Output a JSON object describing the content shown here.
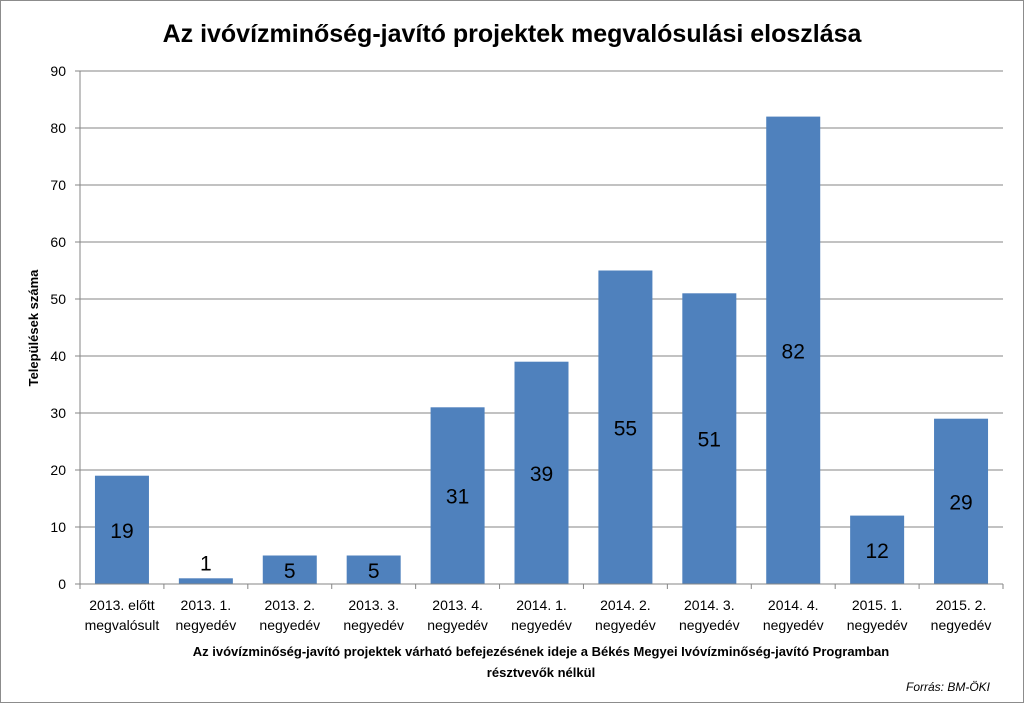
{
  "chart_data": {
    "type": "bar",
    "title": "Az ivóvízminőség-javító projektek megvalósulási eloszlása",
    "ylabel": "Települések száma",
    "xlabel_lines": [
      "Az ivóvízminőség-javító projektek várható befejezésének ideje a Békés Megyei Ivóvízminőség-javító Programban",
      "résztvevők nélkül"
    ],
    "source": "Forrás: BM-ÖKI",
    "ylim": [
      0,
      90
    ],
    "yticks": [
      0,
      10,
      20,
      30,
      40,
      50,
      60,
      70,
      80,
      90
    ],
    "grid": true,
    "bar_color": "#4f81bd",
    "categories": [
      [
        "2013. előtt",
        "megvalósult"
      ],
      [
        "2013. 1.",
        "negyedév"
      ],
      [
        "2013. 2.",
        "negyedév"
      ],
      [
        "2013. 3.",
        "negyedév"
      ],
      [
        "2013. 4.",
        "negyedév"
      ],
      [
        "2014. 1.",
        "negyedév"
      ],
      [
        "2014. 2.",
        "negyedév"
      ],
      [
        "2014. 3.",
        "negyedév"
      ],
      [
        "2014. 4.",
        "negyedév"
      ],
      [
        "2015. 1.",
        "negyedév"
      ],
      [
        "2015. 2.",
        "negyedév"
      ]
    ],
    "values": [
      19,
      1,
      5,
      5,
      31,
      39,
      55,
      51,
      82,
      12,
      29
    ]
  }
}
